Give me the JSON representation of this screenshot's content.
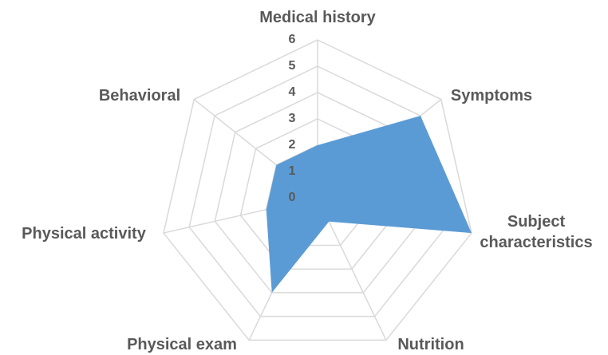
{
  "chart_data": {
    "type": "radar",
    "categories": [
      "Medical history",
      "Symptoms",
      "Subject characteristics",
      "Nutrition",
      "Physical exam",
      "Physical activity",
      "Behavioral"
    ],
    "values": [
      2,
      5,
      6,
      1,
      4,
      2,
      2
    ],
    "color": "#5b9bd5",
    "ylim": [
      0,
      6
    ],
    "yticks": [
      0,
      1,
      2,
      3,
      4,
      5,
      6
    ],
    "grid": true
  }
}
